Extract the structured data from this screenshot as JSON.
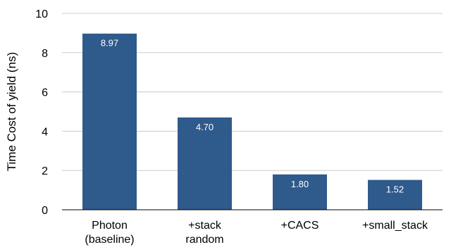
{
  "chart_data": {
    "type": "bar",
    "categories": [
      [
        "Photon",
        "(baseline)"
      ],
      [
        "+stack",
        "random"
      ],
      [
        "+CACS"
      ],
      [
        "+small_stack"
      ]
    ],
    "values": [
      8.97,
      4.7,
      1.8,
      1.52
    ],
    "data_labels": [
      "8.97",
      "4.70",
      "1.80",
      "1.52"
    ],
    "ylabel": "Time Cost of yield (ns)",
    "ylim": [
      0,
      10
    ],
    "yticks": [
      0,
      2,
      4,
      6,
      8,
      10
    ],
    "grid": true,
    "legend": "none",
    "bar_color": "#2f5a8c",
    "grid_color": "#cccccc",
    "axis_color": "#000000"
  }
}
